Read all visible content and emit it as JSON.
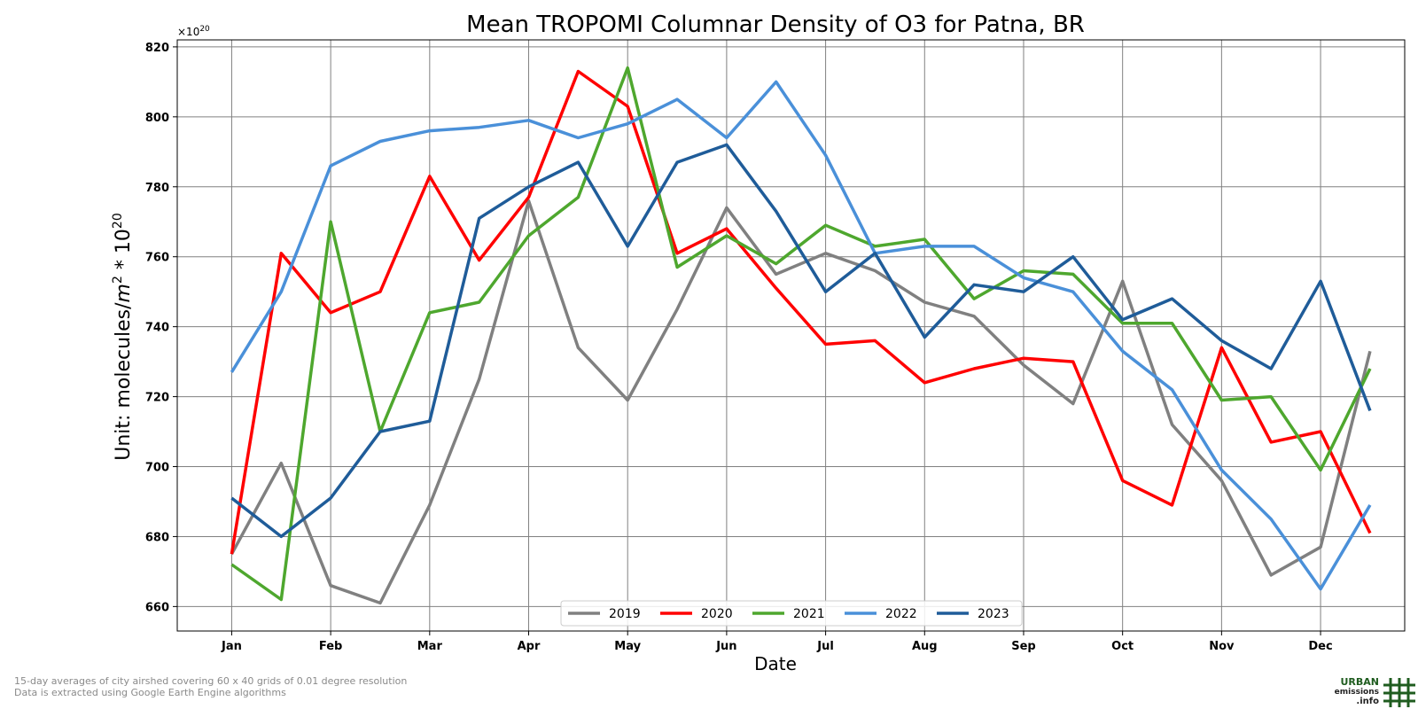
{
  "chart_data": {
    "type": "line",
    "title": "Mean TROPOMI Columnar Density of O3 for Patna, BR",
    "xlabel": "Date",
    "ylabel_prefix": "Unit: molecules/",
    "ylabel_unit_base": "m",
    "ylabel_unit_exp": "2",
    "ylabel_mult": " * 10",
    "ylabel_mult_exp": "20",
    "offset_base": "×10",
    "offset_exp": "20",
    "ylim": [
      653,
      822
    ],
    "yticks": [
      660,
      680,
      700,
      720,
      740,
      760,
      780,
      800,
      820
    ],
    "xlim": [
      -0.55,
      11.85
    ],
    "xticks": [
      0,
      1,
      2,
      3,
      4,
      5,
      6,
      7,
      8,
      9,
      10,
      11
    ],
    "xtick_labels": [
      "Jan",
      "Feb",
      "Mar",
      "Apr",
      "May",
      "Jun",
      "Jul",
      "Aug",
      "Sep",
      "Oct",
      "Nov",
      "Dec"
    ],
    "x": [
      0,
      0.5,
      1,
      1.5,
      2,
      2.5,
      3,
      3.5,
      4,
      4.5,
      5,
      5.5,
      6,
      6.5,
      7,
      7.5,
      8,
      8.5,
      9,
      9.5,
      10,
      10.5,
      11,
      11.5
    ],
    "grid": true,
    "legend_position": "bottom-center",
    "series": [
      {
        "name": "2019",
        "color": "#808080",
        "values": [
          675,
          701,
          666,
          661,
          689,
          725,
          776,
          734,
          719,
          745,
          774,
          755,
          761,
          756,
          747,
          743,
          729,
          718,
          753,
          712,
          696,
          669,
          677,
          733
        ]
      },
      {
        "name": "2020",
        "color": "#ff0000",
        "values": [
          675,
          761,
          744,
          750,
          783,
          759,
          777,
          813,
          803,
          761,
          768,
          751,
          735,
          736,
          724,
          728,
          731,
          730,
          696,
          689,
          734,
          707,
          710,
          681
        ]
      },
      {
        "name": "2021",
        "color": "#4ea72e",
        "values": [
          672,
          662,
          770,
          710,
          744,
          747,
          766,
          777,
          814,
          757,
          766,
          758,
          769,
          763,
          765,
          748,
          756,
          755,
          741,
          741,
          719,
          720,
          699,
          728
        ]
      },
      {
        "name": "2022",
        "color": "#4a90d9",
        "values": [
          727,
          750,
          786,
          793,
          796,
          797,
          799,
          794,
          798,
          805,
          794,
          810,
          789,
          761,
          763,
          763,
          754,
          750,
          733,
          722,
          699,
          685,
          665,
          689
        ]
      },
      {
        "name": "2023",
        "color": "#1f5c99",
        "values": [
          691,
          680,
          691,
          710,
          713,
          771,
          780,
          787,
          763,
          787,
          792,
          773,
          750,
          761,
          737,
          752,
          750,
          760,
          742,
          748,
          736,
          728,
          753,
          716
        ]
      }
    ]
  },
  "footnotes": [
    "15-day averages of city airshed covering 60 x 40 grids of 0.01 degree resolution",
    "Data is extracted using Google Earth Engine algorithms"
  ],
  "logo": {
    "line1": "URBAN",
    "line2": "emissions",
    "line3": ".info",
    "icon": "grid-hash-icon"
  }
}
